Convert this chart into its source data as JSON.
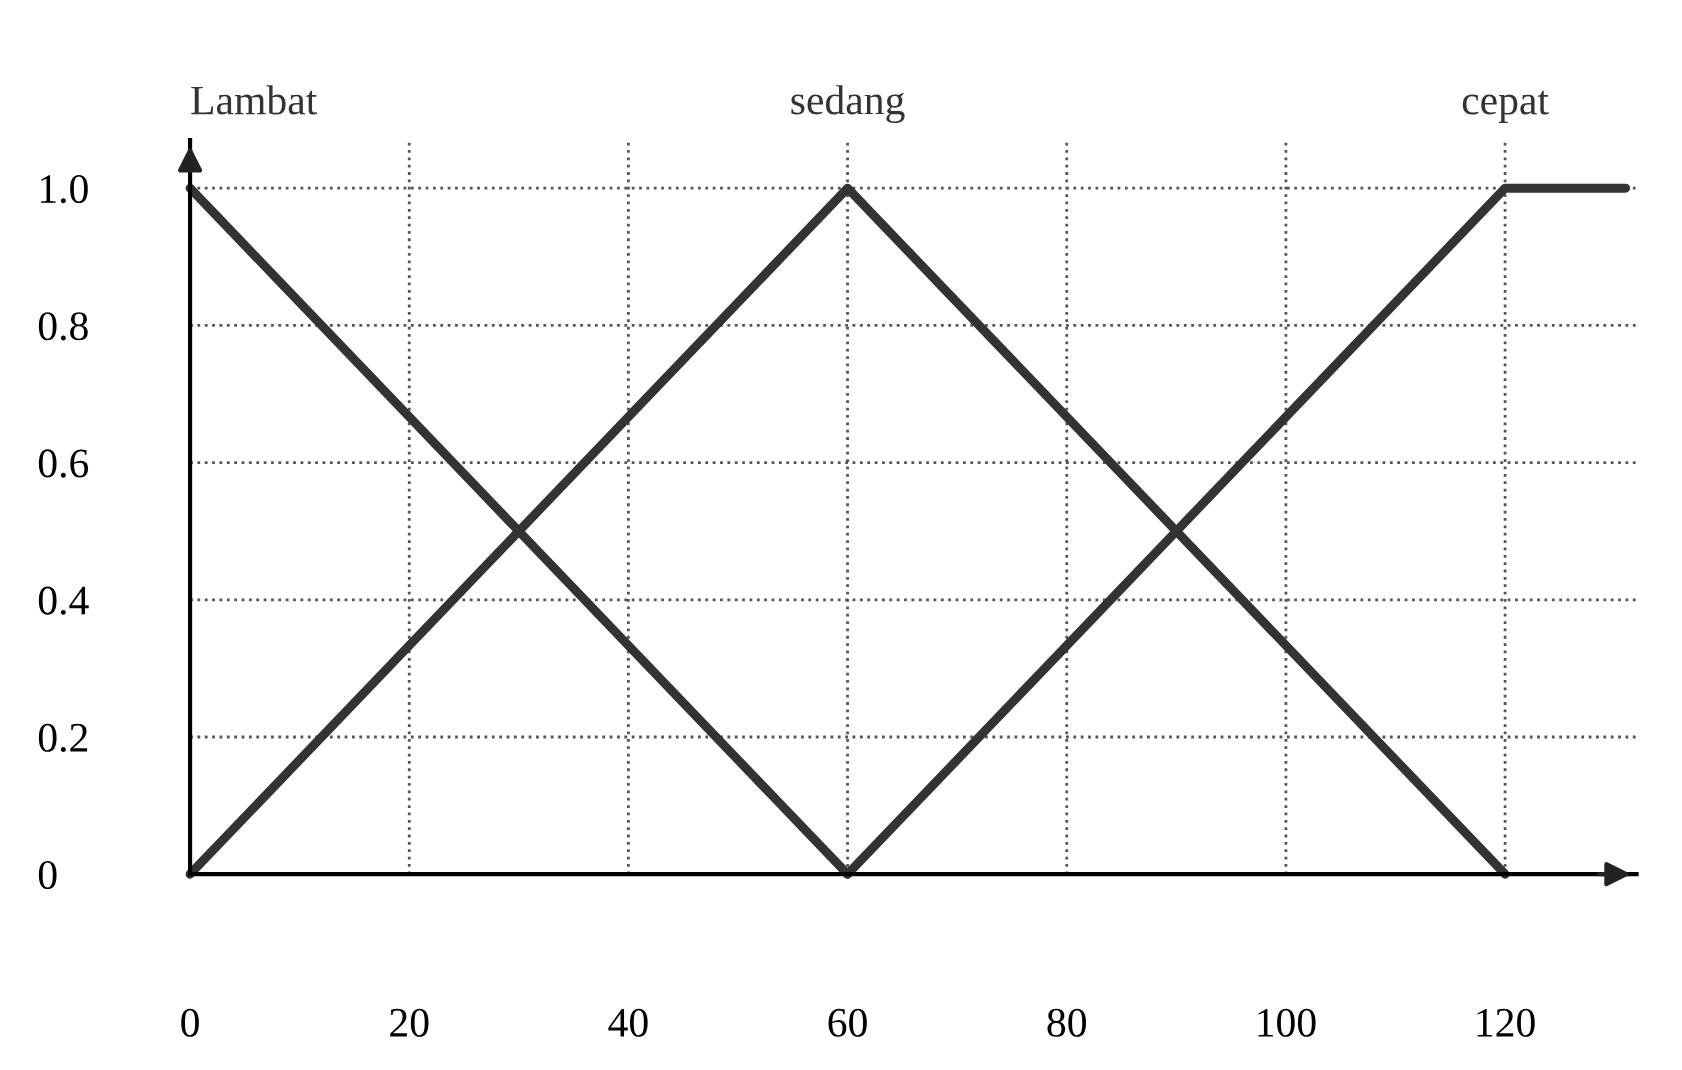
{
  "chart_data": {
    "type": "line",
    "xlim": [
      0,
      132
    ],
    "ylim": [
      0,
      1.07
    ],
    "xticks": [
      0,
      20,
      40,
      60,
      80,
      100,
      120
    ],
    "yticks": [
      {
        "value": 0,
        "label": "0"
      },
      {
        "value": 0.2,
        "label": "0.2"
      },
      {
        "value": 0.4,
        "label": "0.4"
      },
      {
        "value": 0.6,
        "label": "0.6"
      },
      {
        "value": 0.8,
        "label": "0.8"
      },
      {
        "value": 1.0,
        "label": "1.0"
      }
    ],
    "grid": true,
    "line_style": "solid",
    "marker": "none",
    "series": [
      {
        "name": "Lambat",
        "color": "#333333",
        "x": [
          0,
          60
        ],
        "values": [
          1,
          0
        ]
      },
      {
        "name": "sedang",
        "color": "#333333",
        "x": [
          0,
          60,
          120
        ],
        "values": [
          0,
          1,
          0
        ]
      },
      {
        "name": "cepat",
        "color": "#333333",
        "x": [
          60,
          120,
          131
        ],
        "values": [
          0,
          1,
          1
        ]
      }
    ]
  }
}
